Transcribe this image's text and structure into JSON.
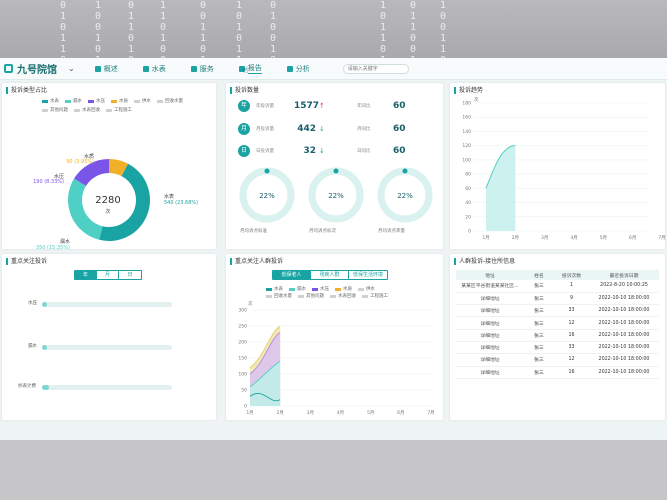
{
  "background": {
    "matrix_columns": [
      "0\n1\n0\n1\n1\n0",
      "1\n0\n0\n1\n0\n1",
      "0\n1\n1\n0\n1\n0",
      "1\n1\n0\n1\n0\n0",
      "0\n0\n1\n1\n0\n1",
      "1\n0\n1\n0\n1\n1",
      "0\n1\n0\n0\n1\n0",
      "1\n0\n1\n1\n0\n1",
      "0\n1\n1\n0\n0\n1",
      "1\n0\n0\n1\n1\n0"
    ]
  },
  "header": {
    "app_title": "九号院馆",
    "nav": [
      {
        "label": "概述",
        "icon": "list-icon"
      },
      {
        "label": "水表",
        "icon": "drop-icon"
      },
      {
        "label": "服务",
        "icon": "service-icon"
      },
      {
        "label": "报告",
        "icon": "report-icon",
        "active": true
      },
      {
        "label": "分析",
        "icon": "analysis-icon"
      }
    ],
    "search_placeholder": "请输入关键字"
  },
  "panels": {
    "donut": {
      "title": "投诉类型占比",
      "legend": [
        "水表",
        "漏水",
        "水压",
        "水质",
        "供水",
        "回收水量"
      ],
      "legend_row2": [
        "其他问题",
        "水表回收",
        "工程施工"
      ],
      "center_value": "2280",
      "center_unit": "次",
      "labels": [
        {
          "name": "水质",
          "value": "90 (3.95%)"
        },
        {
          "name": "水压",
          "value": "190 (8.33%)"
        },
        {
          "name": "漏水",
          "value": "350 (15.35%)"
        },
        {
          "name": "水表",
          "value": "540 (23.68%)"
        }
      ]
    },
    "stats": {
      "title": "投诉数量",
      "rows": [
        {
          "badge": "年",
          "label": "年投诉量",
          "value": "1577",
          "arrow": "↑",
          "arrow_color": "#e0443a",
          "sub_label": "年同比",
          "sub_value": "60"
        },
        {
          "badge": "月",
          "label": "月投诉量",
          "value": "442",
          "arrow": "↓",
          "arrow_color": "#1aa3a3",
          "sub_label": "月同比",
          "sub_value": "60"
        },
        {
          "badge": "日",
          "label": "日投诉量",
          "value": "32",
          "arrow": "↓",
          "arrow_color": "#1aa3a3",
          "sub_label": "日同比",
          "sub_value": "60"
        }
      ],
      "rings": [
        {
          "pct": "22%",
          "label": "月均诉点标准",
          "fraction": 0.22
        },
        {
          "pct": "22%",
          "label": "月均诉点标次",
          "fraction": 0.22
        },
        {
          "pct": "22%",
          "label": "月均诉点率量",
          "fraction": 0.22
        }
      ]
    },
    "trend": {
      "title": "投诉趋势",
      "unit": "次"
    },
    "focus": {
      "title": "重点关注投诉",
      "tabs": [
        "年",
        "月",
        "日"
      ],
      "bars": [
        {
          "label": "水压",
          "fraction": 0.04
        },
        {
          "label": "漏水",
          "fraction": 0.03
        },
        {
          "label": "抄表计费",
          "fraction": 0.05
        }
      ]
    },
    "people": {
      "title": "重点关注人群投诉",
      "tabs": [
        "低保老人",
        "残疾人群",
        "低保生活环境"
      ],
      "legend": [
        "水表",
        "漏水",
        "水压",
        "水质",
        "供水",
        "回收水量",
        "其他问题",
        "水表回收",
        "工程施工"
      ],
      "unit": "次"
    },
    "table": {
      "title": "人群投诉-接住所信息",
      "columns": [
        "地址",
        "姓名",
        "投诉次数",
        "最近投诉日期"
      ],
      "rows": [
        [
          "某某区平谷街道某某社区...",
          "张三",
          "1",
          "2022-8-20 10:00:25"
        ],
        [
          "详细地址",
          "张三",
          "9",
          "2022-10-10 18:00:00"
        ],
        [
          "详细地址",
          "张三",
          "33",
          "2022-10-10 18:00:00"
        ],
        [
          "详细地址",
          "张三",
          "12",
          "2022-10-10 18:00:00"
        ],
        [
          "详细地址",
          "张三",
          "16",
          "2022-10-10 18:00:00"
        ],
        [
          "详细地址",
          "张三",
          "33",
          "2022-10-10 18:00:00"
        ],
        [
          "详细地址",
          "张三",
          "12",
          "2022-10-10 18:00:00"
        ],
        [
          "详细地址",
          "张三",
          "16",
          "2022-10-10 18:00:00"
        ]
      ]
    }
  },
  "colors": {
    "accent": "#1aa3a3",
    "donut": [
      "#1aa3a3",
      "#4fd0c5",
      "#7b54e8",
      "#f0b028"
    ]
  },
  "chart_data": [
    {
      "type": "pie",
      "title": "投诉类型占比",
      "categories": [
        "水表",
        "漏水",
        "水压",
        "水质"
      ],
      "values": [
        540,
        350,
        190,
        90
      ]
    },
    {
      "type": "area",
      "title": "投诉趋势",
      "x": [
        "1月",
        "2月",
        "3月",
        "4月",
        "5月",
        "6月",
        "7月"
      ],
      "yticks": [
        0,
        20,
        40,
        60,
        80,
        100,
        120,
        140,
        160,
        180
      ],
      "ylabel": "次",
      "ylim": [
        0,
        180
      ],
      "series": [
        {
          "values": [
            60,
            120,
            null,
            null,
            null,
            null,
            null
          ]
        }
      ]
    },
    {
      "type": "area",
      "title": "重点关注人群投诉",
      "x": [
        "1月",
        "2月",
        "3月",
        "4月",
        "5月",
        "6月",
        "7月"
      ],
      "yticks": [
        0,
        50,
        100,
        150,
        200,
        250,
        300
      ],
      "ylabel": "次",
      "ylim": [
        0,
        300
      ],
      "series": [
        {
          "values": [
            120,
            250,
            null,
            null,
            null,
            null,
            null
          ]
        },
        {
          "values": [
            100,
            230,
            null,
            null,
            null,
            null,
            null
          ]
        },
        {
          "values": [
            60,
            140,
            null,
            null,
            null,
            null,
            null
          ]
        },
        {
          "values": [
            30,
            20,
            null,
            null,
            null,
            null,
            null
          ]
        }
      ]
    }
  ]
}
